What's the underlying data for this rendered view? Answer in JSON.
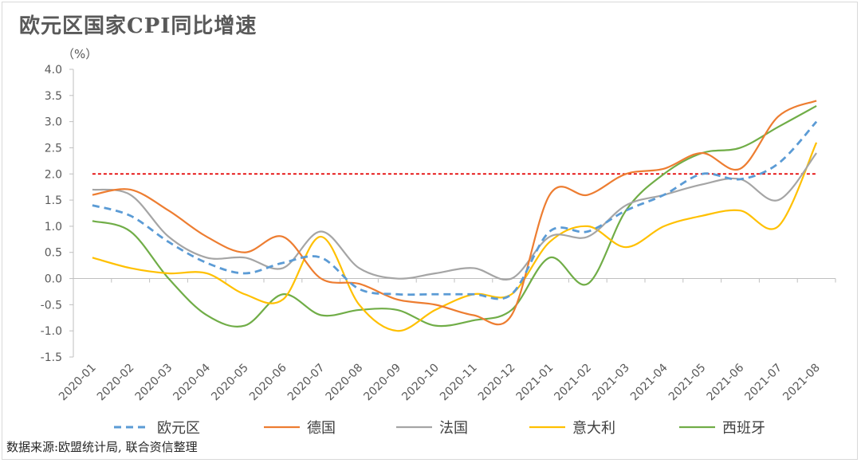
{
  "chart_data": {
    "type": "line",
    "title": "欧元区国家CPI同比增速",
    "ylabel": "（%）",
    "ylim": [
      -1.5,
      4.0
    ],
    "yticks": [
      "4.0",
      "3.5",
      "3.0",
      "2.5",
      "2.0",
      "1.5",
      "1.0",
      "0.5",
      "0.0",
      "-0.5",
      "-1.0",
      "-1.5"
    ],
    "ytick_values": [
      4.0,
      3.5,
      3.0,
      2.5,
      2.0,
      1.5,
      1.0,
      0.5,
      0.0,
      -0.5,
      -1.0,
      -1.5
    ],
    "categories": [
      "2020-01",
      "2020-02",
      "2020-03",
      "2020-04",
      "2020-05",
      "2020-06",
      "2020-07",
      "2020-08",
      "2020-09",
      "2020-10",
      "2020-11",
      "2020-12",
      "2021-01",
      "2021-02",
      "2021-03",
      "2021-04",
      "2021-05",
      "2021-06",
      "2021-07",
      "2021-08"
    ],
    "reference_line": {
      "value": 2.0,
      "color": "#e30000",
      "style": "dashed"
    },
    "legend_position": "bottom",
    "series": [
      {
        "name": "欧元区",
        "color": "#5b9bd5",
        "dashed": true,
        "values": [
          1.4,
          1.2,
          0.7,
          0.3,
          0.1,
          0.3,
          0.4,
          -0.2,
          -0.3,
          -0.3,
          -0.3,
          -0.3,
          0.9,
          0.9,
          1.3,
          1.6,
          2.0,
          1.9,
          2.2,
          3.0
        ]
      },
      {
        "name": "德国",
        "color": "#ed7d31",
        "dashed": false,
        "values": [
          1.6,
          1.7,
          1.3,
          0.8,
          0.5,
          0.8,
          0.0,
          -0.1,
          -0.4,
          -0.5,
          -0.7,
          -0.7,
          1.6,
          1.6,
          2.0,
          2.1,
          2.4,
          2.1,
          3.1,
          3.4
        ]
      },
      {
        "name": "法国",
        "color": "#a5a5a5",
        "dashed": false,
        "values": [
          1.7,
          1.6,
          0.8,
          0.4,
          0.4,
          0.2,
          0.9,
          0.2,
          0.0,
          0.1,
          0.2,
          0.0,
          0.8,
          0.8,
          1.4,
          1.6,
          1.8,
          1.9,
          1.5,
          2.4
        ]
      },
      {
        "name": "意大利",
        "color": "#ffc000",
        "dashed": false,
        "values": [
          0.4,
          0.2,
          0.1,
          0.1,
          -0.3,
          -0.4,
          0.8,
          -0.5,
          -1.0,
          -0.6,
          -0.3,
          -0.3,
          0.7,
          1.0,
          0.6,
          1.0,
          1.2,
          1.3,
          1.0,
          2.6
        ]
      },
      {
        "name": "西班牙",
        "color": "#70ad47",
        "dashed": false,
        "values": [
          1.1,
          0.9,
          0.0,
          -0.7,
          -0.9,
          -0.3,
          -0.7,
          -0.6,
          -0.6,
          -0.9,
          -0.8,
          -0.6,
          0.4,
          -0.1,
          1.3,
          2.0,
          2.4,
          2.5,
          2.9,
          3.3
        ]
      }
    ]
  },
  "source_note": "数据来源:欧盟统计局, 联合资信整理"
}
